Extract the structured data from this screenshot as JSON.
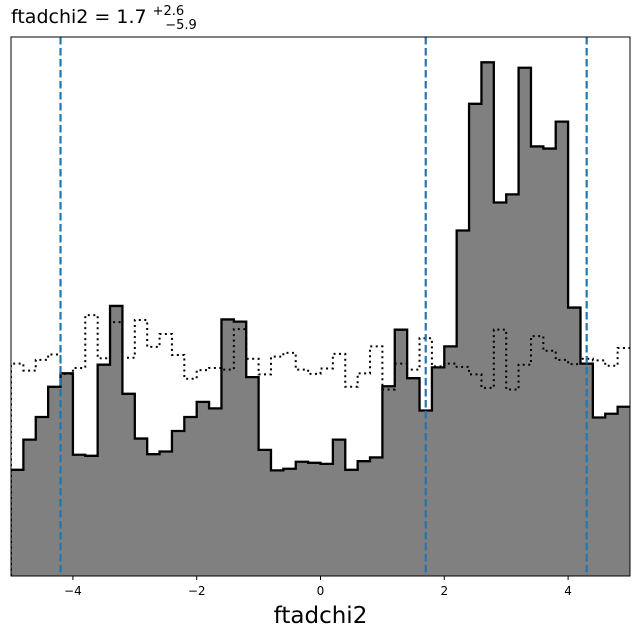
{
  "chart_data": {
    "type": "histogram",
    "title": {
      "main": "ftadchi2 = 1.7",
      "superscript": "+2.6",
      "subscript": "−5.9"
    },
    "xlabel": "ftadchi2",
    "ylabel": "",
    "xlim": [
      -5.0,
      5.0
    ],
    "ylim": [
      0,
      1
    ],
    "y_axis_ticks_shown": false,
    "x_ticks": [
      {
        "value": -4,
        "label": "−4"
      },
      {
        "value": -2,
        "label": "−2"
      },
      {
        "value": 0,
        "label": "0"
      },
      {
        "value": 2,
        "label": "2"
      },
      {
        "value": 4,
        "label": "4"
      }
    ],
    "bin_edges": [
      -5.0,
      -4.8,
      -4.6,
      -4.4,
      -4.2,
      -4.0,
      -3.8,
      -3.6,
      -3.4,
      -3.2,
      -3.0,
      -2.8,
      -2.6,
      -2.4,
      -2.2,
      -2.0,
      -1.8,
      -1.6,
      -1.4,
      -1.2,
      -1.0,
      -0.8,
      -0.6,
      -0.4,
      -0.2,
      0.0,
      0.2,
      0.4,
      0.6,
      0.8,
      1.0,
      1.2,
      1.4,
      1.6,
      1.8,
      2.0,
      2.2,
      2.4,
      2.6,
      2.8,
      3.0,
      3.2,
      3.4,
      3.6,
      3.8,
      4.0,
      4.2,
      4.4,
      4.6,
      4.8,
      5.0
    ],
    "series": [
      {
        "style": "filled-gray-black-edge",
        "values": [
          0.197,
          0.253,
          0.295,
          0.351,
          0.376,
          0.225,
          0.223,
          0.392,
          0.501,
          0.338,
          0.255,
          0.226,
          0.231,
          0.269,
          0.295,
          0.323,
          0.311,
          0.476,
          0.472,
          0.369,
          0.234,
          0.196,
          0.199,
          0.212,
          0.21,
          0.208,
          0.253,
          0.197,
          0.213,
          0.22,
          0.352,
          0.457,
          0.367,
          0.307,
          0.387,
          0.426,
          0.641,
          0.876,
          0.953,
          0.693,
          0.708,
          0.943,
          0.797,
          0.793,
          0.843,
          0.498,
          0.394,
          0.294,
          0.301,
          0.314
        ]
      },
      {
        "style": "dotted-outline",
        "values": [
          0.394,
          0.381,
          0.401,
          0.411,
          0.375,
          0.386,
          0.484,
          0.404,
          0.471,
          0.405,
          0.475,
          0.425,
          0.449,
          0.41,
          0.366,
          0.382,
          0.386,
          0.383,
          0.458,
          0.403,
          0.374,
          0.407,
          0.414,
          0.383,
          0.375,
          0.385,
          0.412,
          0.351,
          0.376,
          0.426,
          0.346,
          0.394,
          0.383,
          0.441,
          0.389,
          0.394,
          0.388,
          0.374,
          0.349,
          0.457,
          0.346,
          0.392,
          0.445,
          0.418,
          0.401,
          0.393,
          0.403,
          0.4,
          0.39,
          0.423
        ]
      }
    ],
    "vlines": [
      -4.2,
      1.7,
      4.3
    ],
    "vline_color": "#1f77b4",
    "fill_color": "#808080",
    "edge_color": "#000000",
    "grid": false
  }
}
